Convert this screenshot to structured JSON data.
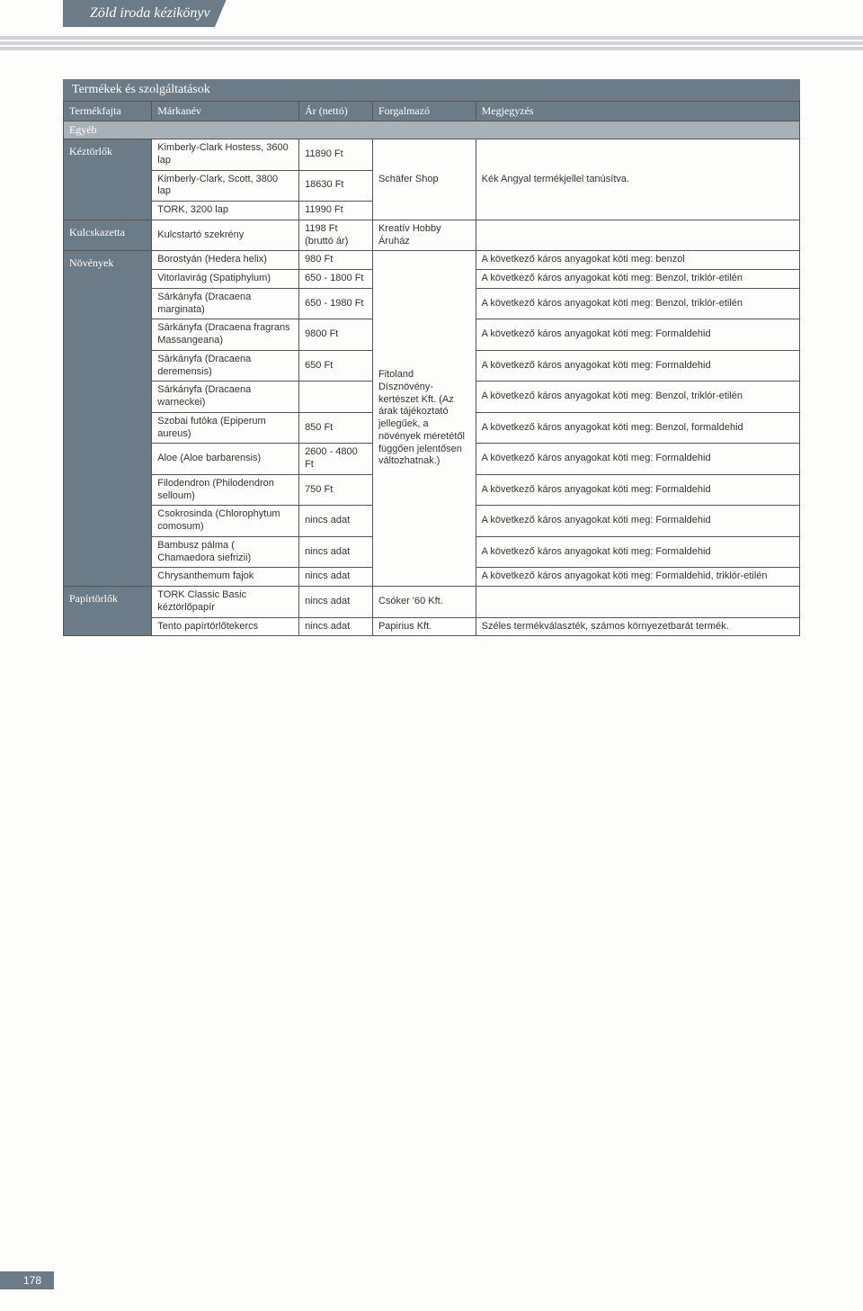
{
  "header_tab": "Zöld iroda kézikönyv",
  "table_title": "Termékek és szolgáltatások",
  "columns": [
    "Termékfajta",
    "Márkanév",
    "Ár (nettó)",
    "Forgalmazó",
    "Megjegyzés"
  ],
  "section_label": "Egyéb",
  "cat_keztorlok": "Kéztörlők",
  "cat_kulcskazetta": "Kulcskazetta",
  "cat_novenyek": "Növények",
  "cat_papirtorlok": "Papírtörlők",
  "keztorlok": {
    "r1_brand": "Kimberly-Clark Hostess, 3600 lap",
    "r1_price": "11890 Ft",
    "r2_brand": "Kimberly-Clark, Scott, 3800 lap",
    "r2_price": "18630 Ft",
    "dist": "Schäfer Shop",
    "note": "Kék Angyal termékjellel tanúsítva.",
    "r3_brand": "TORK, 3200 lap",
    "r3_price": "11990 Ft"
  },
  "kulcskazetta": {
    "brand": "Kulcstartó szekrény",
    "price": "1198 Ft (bruttó ár)",
    "dist": "Kreatív Hobby Áruház"
  },
  "novenyek": {
    "dist": "Fitoland Dísznövény-kertészet Kft. (Az árak tájékoztató jellegűek, a növények méretétől függően jelentősen változhatnak.)",
    "r1_brand": "Borostyán (Hedera helix)",
    "r1_price": "980 Ft",
    "r1_note": "A következő káros anyagokat köti meg: benzol",
    "r2_brand": "Vitorlavirág (Spatiphylum)",
    "r2_price": "650 - 1800 Ft",
    "r2_note": "A következő káros anyagokat köti meg: Benzol, triklór-etilén",
    "r3_brand": "Sárkányfa (Dracaena marginata)",
    "r3_price": "650 - 1980 Ft",
    "r3_note": "A következő káros anyagokat köti meg: Benzol, triklór-etilén",
    "r4_brand": "Sárkányfa (Dracaena fragrans Massangeana)",
    "r4_price": "9800 Ft",
    "r4_note": "A következő káros anyagokat köti meg: Formaldehid",
    "r5_brand": "Sárkányfa (Dracaena deremensis)",
    "r5_price": "650 Ft",
    "r5_note": "A következő káros anyagokat köti meg: Formaldehid",
    "r6_brand": "Sárkányfa (Dracaena warneckei)",
    "r6_note": "A következő káros anyagokat köti meg: Benzol, triklór-etilén",
    "r7_brand": "Szobai futóka (Epiperum aureus)",
    "r7_price": "850 Ft",
    "r7_note": "A következő káros anyagokat köti meg: Benzol, formaldehid",
    "r8_brand": "Aloe (Aloe barbarensis)",
    "r8_price": "2600 - 4800 Ft",
    "r8_note": "A következő káros anyagokat köti meg: Formaldehid",
    "r9_brand": "Filodendron (Philodendron selloum)",
    "r9_price": "750 Ft",
    "r9_note": "A következő káros anyagokat köti meg: Formaldehid",
    "r10_brand": "Csokrosinda (Chlorophytum comosum)",
    "r10_price": "nincs adat",
    "r10_note": "A következő káros anyagokat köti meg: Formaldehid",
    "r11_brand": "Bambusz pálma ( Chamaedora siefrizii)",
    "r11_price": "nincs adat",
    "r11_note": "A következő káros anyagokat köti meg: Formaldehid",
    "r12_brand": "Chrysanthemum fajok",
    "r12_price": "nincs adat",
    "r12_note": "A következő káros anyagokat köti meg: Formaldehid,  triklór-etilén"
  },
  "papirtorlok": {
    "r1_brand": "TORK Classic Basic kéztörlőpapír",
    "r1_price": "nincs adat",
    "r1_dist": "Csóker '60 Kft.",
    "r2_brand": "Tento papírtörlőtekercs",
    "r2_price": "nincs adat",
    "r2_dist": "Papirius Kft.",
    "r2_note": "Széles termékválaszték, számos környezetbarát termék."
  },
  "page_number": "178"
}
